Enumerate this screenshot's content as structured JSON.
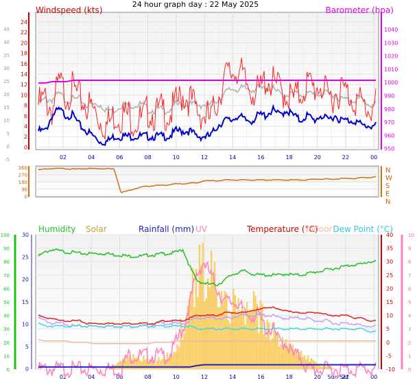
{
  "title": "24 hour graph day : 22 May 2025",
  "colors": {
    "wind": "#e00000",
    "gust": "#ff2020",
    "avgwind": "#0000cc",
    "baro": "#e000e0",
    "grey": "#b0b0b0",
    "dir": "#d07010",
    "hum": "#20c020",
    "solar": "#f8c850",
    "rain": "#2020c0",
    "uv": "#ff80c0",
    "temp": "#e02020",
    "indoor": "#f0b8a0",
    "dew": "#40d8e0",
    "temp2": "#c0a0ff",
    "axis_left": "#cc0000"
  },
  "chart_data": [
    {
      "type": "line",
      "name_top": "wind-barometer",
      "title": "Windspeed (kts)",
      "right_title": "Barometer (hpa)",
      "x_ticks": [
        "02",
        "04",
        "06",
        "08",
        "10",
        "12",
        "14",
        "16",
        "18",
        "20",
        "22",
        "00"
      ],
      "y_left_ticks": [
        "24",
        "22",
        "20",
        "18",
        "16",
        "14",
        "12",
        "10",
        "8",
        "6",
        "4",
        "2",
        "0"
      ],
      "y_outer_ticks": [
        "45",
        "40",
        "35",
        "30",
        "25",
        "20",
        "15",
        "10",
        "5",
        "0",
        "-5"
      ],
      "y_right_ticks": [
        "1040",
        "1030",
        "1020",
        "1010",
        "1000",
        "990",
        "980",
        "970",
        "960",
        "950"
      ],
      "ylim_left": [
        0,
        25
      ],
      "ylim_right": [
        945,
        1050
      ],
      "series": [
        {
          "key": "gust",
          "values": [
            8,
            9,
            7,
            12,
            10,
            11,
            9,
            8,
            7,
            5,
            4,
            6,
            6,
            6,
            5,
            5,
            7,
            6,
            7,
            6,
            8,
            10,
            9,
            7,
            6,
            5,
            9,
            13,
            14,
            15,
            12,
            11,
            10,
            13,
            12,
            11,
            10,
            9,
            10,
            12,
            11,
            12,
            9,
            10,
            11,
            10,
            9,
            8,
            7,
            8
          ]
        },
        {
          "key": "avg",
          "values": [
            3,
            3,
            6,
            7,
            6,
            6,
            4,
            3,
            2,
            1,
            1,
            2,
            2,
            2,
            2,
            2,
            2,
            2,
            2,
            2,
            3,
            3,
            3,
            2,
            2,
            2,
            4,
            5,
            5,
            6,
            5,
            5,
            6,
            6,
            7,
            6,
            7,
            6,
            5,
            6,
            5,
            6,
            5,
            6,
            5,
            5,
            5,
            4,
            4,
            4
          ]
        },
        {
          "key": "baro",
          "values": [
            996,
            996,
            997,
            997,
            997,
            998,
            998,
            998,
            998,
            998,
            998,
            998,
            998,
            998,
            998,
            998,
            998,
            998,
            998,
            998,
            998,
            998,
            998,
            998,
            998,
            998,
            998,
            998,
            998,
            998,
            998,
            998,
            998,
            998,
            998,
            998,
            998,
            998,
            998,
            998,
            998,
            998,
            998,
            998,
            998,
            998,
            998,
            998,
            998,
            998
          ]
        },
        {
          "key": "grey",
          "values": [
            8,
            9,
            9,
            10,
            9,
            9,
            9,
            8,
            8,
            8,
            7,
            7,
            8,
            8,
            8,
            8,
            7,
            7,
            7,
            7,
            8,
            8,
            8,
            8,
            8,
            8,
            9,
            10,
            11,
            11,
            11,
            11,
            11,
            11,
            11,
            10,
            10,
            10,
            10,
            10,
            10,
            10,
            10,
            10,
            9,
            9,
            9,
            9,
            8,
            8
          ]
        }
      ]
    },
    {
      "type": "line",
      "name_top": "wind-direction",
      "y_ticks": [
        "360",
        "270",
        "180",
        "90",
        "0"
      ],
      "dir_labels": [
        "N",
        "W",
        "S",
        "E",
        "N"
      ],
      "ylim": [
        0,
        360
      ],
      "series": [
        {
          "key": "dir",
          "values": [
            330,
            340,
            345,
            345,
            345,
            340,
            340,
            345,
            345,
            345,
            345,
            340,
            40,
            60,
            90,
            110,
            120,
            130,
            130,
            140,
            150,
            150,
            160,
            160,
            190,
            190,
            190,
            200,
            200,
            200,
            200,
            200,
            200,
            200,
            200,
            200,
            200,
            200,
            200,
            200,
            210,
            210,
            210,
            210,
            220,
            220,
            220,
            230,
            230,
            240
          ]
        }
      ]
    },
    {
      "type": "line",
      "name_top": "temperature-humidity",
      "legend": [
        "Humidity",
        "Solar",
        "Rainfall (mm)",
        "UV",
        "Temperature (°C)",
        "Indoor",
        "Dew Point (°C)"
      ],
      "x_ticks": [
        "02",
        "04",
        "06",
        "08",
        "10",
        "12",
        "14",
        "16",
        "18",
        "20",
        "Sun Set",
        "22",
        "00"
      ],
      "y_hum_ticks": [
        "100",
        "90",
        "80",
        "70",
        "60",
        "50",
        "40",
        "30",
        "20",
        "10",
        "0"
      ],
      "y_rain_ticks": [
        "30",
        "25",
        "20",
        "15",
        "10",
        "5",
        "0"
      ],
      "y_temp_ticks": [
        "40",
        "35",
        "30",
        "25",
        "20",
        "15",
        "10",
        "5",
        "0",
        "-5",
        "-10"
      ],
      "y_uv_ticks": [
        "10",
        "9",
        "8",
        "7",
        "6",
        "5",
        "4",
        "3",
        "2",
        "1",
        "0"
      ],
      "ylim_hum": [
        0,
        100
      ],
      "ylim_temp": [
        -10,
        40
      ],
      "series": [
        {
          "key": "hum",
          "values": [
            84,
            87,
            89,
            88,
            87,
            87,
            86,
            86,
            86,
            86,
            86,
            85,
            85,
            84,
            84,
            84,
            85,
            85,
            86,
            86,
            87,
            89,
            76,
            66,
            64,
            63,
            63,
            66,
            70,
            72,
            73,
            71,
            70,
            70,
            70,
            70,
            71,
            70,
            70,
            71,
            72,
            73,
            74,
            75,
            76,
            77,
            78,
            78,
            80,
            80
          ]
        },
        {
          "key": "indoor",
          "values": [
            22,
            21,
            21,
            21,
            21,
            20,
            20,
            20,
            19,
            19,
            19,
            19,
            19,
            19,
            19,
            19,
            19,
            20,
            20,
            20,
            21,
            21,
            21,
            21,
            21,
            21,
            21,
            21,
            21,
            21,
            21,
            21,
            21,
            21,
            21,
            21,
            21,
            21,
            21,
            21,
            21,
            21,
            21,
            21,
            21,
            21,
            21,
            21,
            21,
            21
          ]
        },
        {
          "key": "temp",
          "values": [
            10,
            9,
            9,
            8,
            8,
            8,
            8,
            7,
            7,
            7,
            7,
            7,
            7,
            7,
            7,
            7,
            7,
            7,
            8,
            8,
            8,
            8,
            9,
            10,
            10,
            10,
            10,
            11,
            11,
            11,
            11,
            12,
            12,
            13,
            13,
            12,
            12,
            11,
            11,
            11,
            11,
            11,
            10,
            10,
            10,
            10,
            9,
            9,
            8,
            8
          ]
        },
        {
          "key": "temp2",
          "values": [
            9,
            8,
            7,
            7,
            7,
            6,
            6,
            6,
            6,
            6,
            6,
            6,
            6,
            6,
            6,
            6,
            6,
            7,
            7,
            7,
            7,
            7,
            8,
            9,
            9,
            9,
            9,
            9,
            9,
            10,
            10,
            10,
            10,
            10,
            10,
            9,
            9,
            9,
            9,
            9,
            8,
            8,
            8,
            7,
            7,
            7,
            7,
            6,
            6,
            6
          ]
        },
        {
          "key": "dew",
          "values": [
            7,
            6,
            6,
            6,
            6,
            6,
            6,
            6,
            6,
            6,
            6,
            6,
            6,
            6,
            6,
            6,
            6,
            6,
            6,
            6,
            6,
            6,
            6,
            5,
            5,
            5,
            5,
            5,
            5,
            5,
            5,
            5,
            5,
            5,
            5,
            5,
            5,
            5,
            5,
            5,
            5,
            5,
            5,
            5,
            5,
            5,
            5,
            5,
            4,
            4
          ]
        },
        {
          "key": "solar",
          "values": [
            0,
            0,
            0,
            0,
            0,
            0,
            0,
            0,
            0,
            0,
            0,
            1,
            2,
            3,
            3,
            3,
            3,
            2,
            3,
            4,
            6,
            12,
            18,
            24,
            26,
            24,
            20,
            18,
            16,
            16,
            15,
            16,
            14,
            12,
            10,
            9,
            7,
            5,
            4,
            3,
            2,
            1,
            1,
            0,
            0,
            0,
            0,
            0,
            0,
            0
          ]
        },
        {
          "key": "uv",
          "values": [
            0,
            0,
            0,
            0,
            0,
            0,
            0,
            0,
            0,
            0,
            0,
            0,
            0,
            1,
            1,
            1,
            1,
            1,
            1,
            1,
            2,
            3,
            5,
            7,
            8,
            7,
            6,
            5,
            5,
            5,
            4,
            4,
            4,
            3,
            3,
            2,
            2,
            1,
            1,
            0,
            0,
            0,
            0,
            0,
            0,
            0,
            0,
            0,
            0,
            0
          ]
        },
        {
          "key": "rain",
          "values": [
            0.5,
            0.5,
            0.5,
            0.5,
            0.5,
            0.5,
            0.5,
            0.5,
            0.5,
            0.5,
            0.5,
            0.5,
            0.5,
            0.5,
            0.5,
            0.5,
            0.5,
            0.5,
            0.5,
            0.5,
            0.5,
            0.5,
            0.5,
            0.8,
            1,
            1,
            1,
            1,
            1,
            1,
            1,
            1,
            1,
            1,
            1,
            1,
            1,
            1,
            1,
            1,
            1,
            1,
            1,
            1,
            1,
            1,
            1,
            1,
            1,
            1
          ]
        }
      ]
    }
  ]
}
